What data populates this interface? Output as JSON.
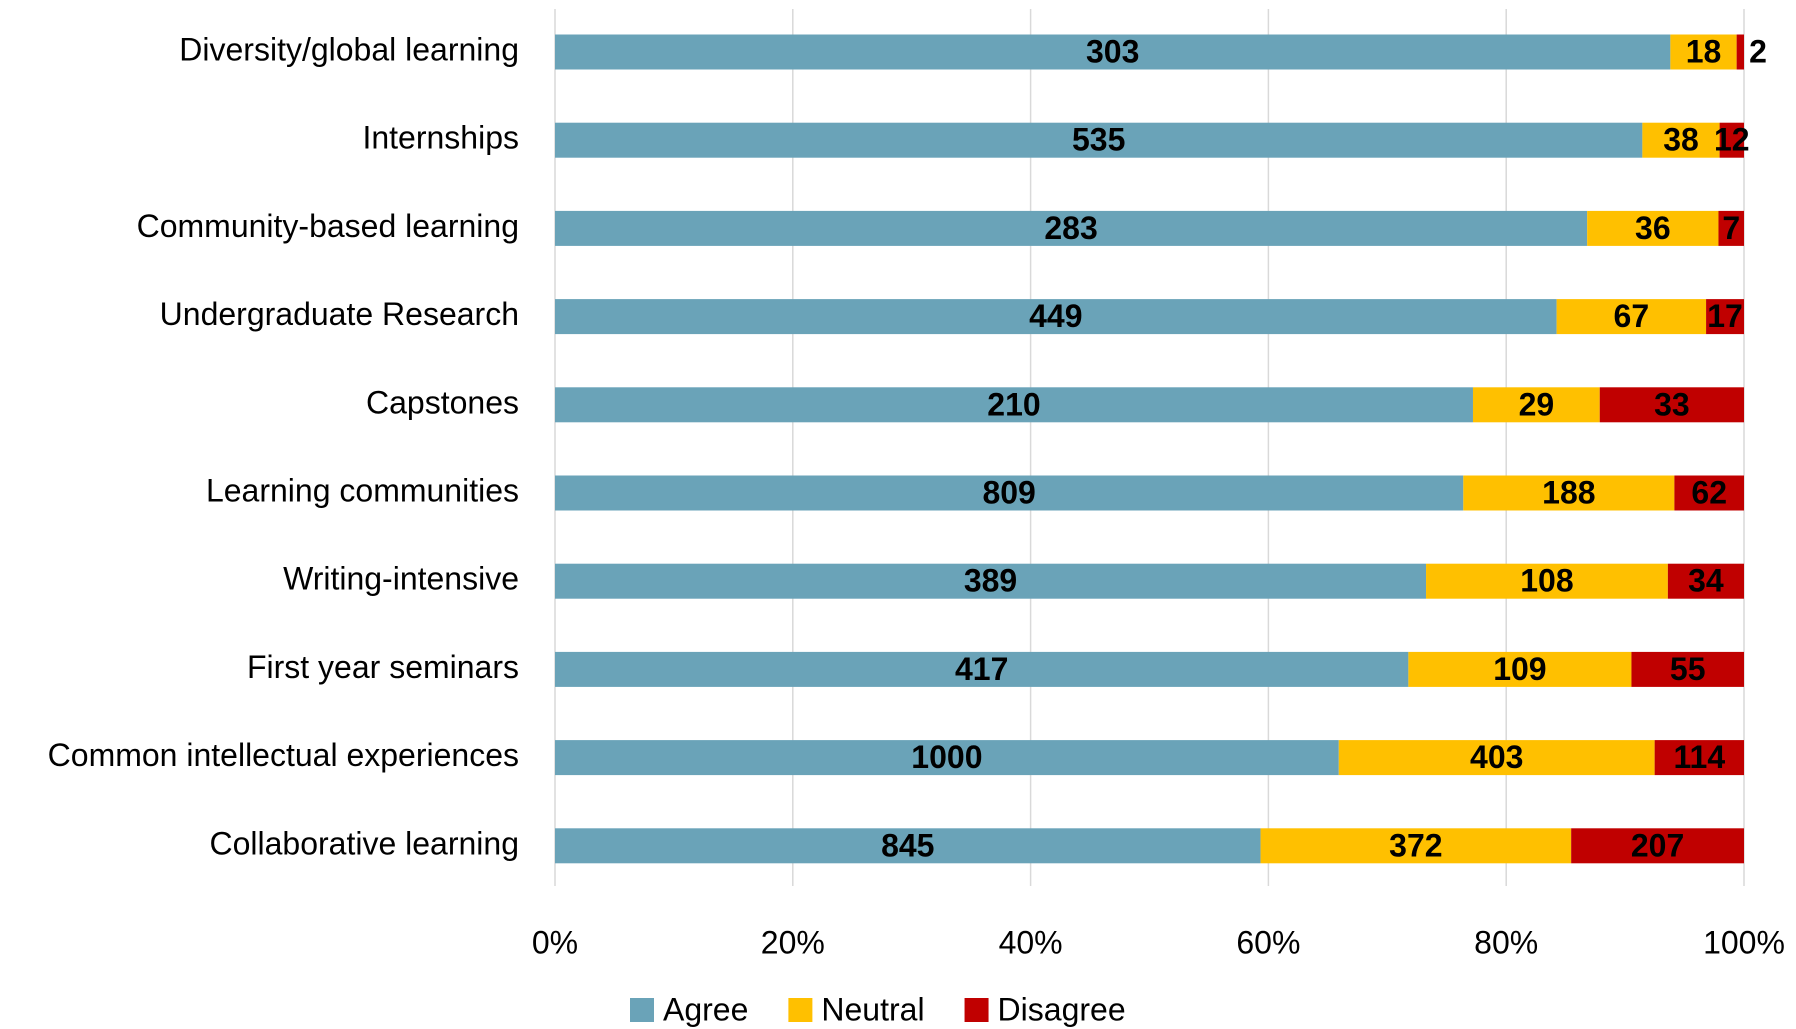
{
  "chart_data": {
    "type": "stacked-bar-horizontal",
    "stacking": "percent",
    "categories": [
      "Diversity/global learning",
      "Internships",
      "Community-based learning",
      "Undergraduate Research",
      "Capstones",
      "Learning communities",
      "Writing-intensive",
      "First year seminars",
      "Common intellectual experiences",
      "Collaborative learning"
    ],
    "series": [
      {
        "name": "Agree",
        "color": "#6aa3b8",
        "values": [
          303,
          535,
          283,
          449,
          210,
          809,
          389,
          417,
          1000,
          845
        ]
      },
      {
        "name": "Neutral",
        "color": "#ffc000",
        "values": [
          18,
          38,
          36,
          67,
          29,
          188,
          108,
          109,
          403,
          372
        ]
      },
      {
        "name": "Disagree",
        "color": "#c00000",
        "values": [
          2,
          12,
          7,
          17,
          33,
          62,
          34,
          55,
          114,
          207
        ]
      }
    ],
    "xlim": [
      0,
      100
    ],
    "xticks": [
      {
        "value": 0,
        "label": "0%"
      },
      {
        "value": 20,
        "label": "20%"
      },
      {
        "value": 40,
        "label": "40%"
      },
      {
        "value": 60,
        "label": "60%"
      },
      {
        "value": 80,
        "label": "80%"
      },
      {
        "value": 100,
        "label": "100%"
      }
    ],
    "grid": true,
    "legend": "bottom"
  }
}
